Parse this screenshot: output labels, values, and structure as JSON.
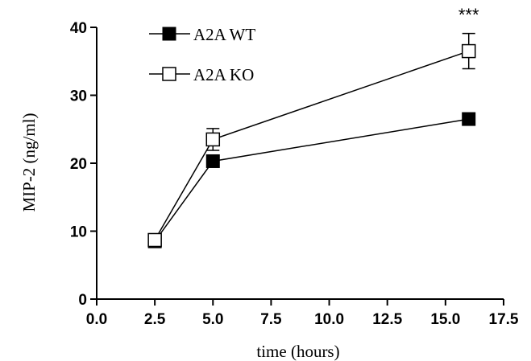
{
  "chart_data": {
    "type": "line",
    "title": "",
    "xlabel": "time (hours)",
    "ylabel": "MIP-2 (ng/ml)",
    "xlim": [
      0,
      17.5
    ],
    "ylim": [
      0,
      40
    ],
    "xticks": [
      "0.0",
      "2.5",
      "5.0",
      "7.5",
      "10.0",
      "12.5",
      "15.0",
      "17.5"
    ],
    "yticks": [
      "0",
      "10",
      "20",
      "30",
      "40"
    ],
    "grid": false,
    "legend_position": "top-left",
    "series": [
      {
        "name": "A2A WT",
        "marker": "filled-square",
        "x": [
          2.5,
          5.0,
          16.0
        ],
        "y": [
          8.5,
          20.3,
          26.5
        ],
        "error": [
          0.5,
          0.7,
          0.9
        ]
      },
      {
        "name": "A2A KO",
        "marker": "open-square",
        "x": [
          2.5,
          5.0,
          16.0
        ],
        "y": [
          8.7,
          23.5,
          36.5
        ],
        "error": [
          0.4,
          1.6,
          2.6
        ]
      }
    ],
    "annotations": [
      {
        "text": "***",
        "x": 16.0
      }
    ]
  }
}
